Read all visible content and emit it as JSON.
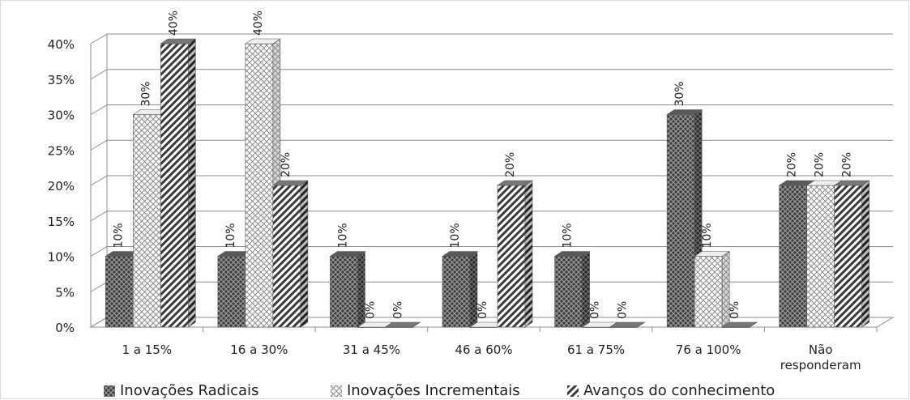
{
  "chart_data": {
    "type": "bar",
    "categories": [
      "1 a 15%",
      "16 a 30%",
      "31 a 45%",
      "46 a 60%",
      "61 a 75%",
      "76 a 100%",
      "Não respondera"
    ],
    "category_lines": [
      [
        "1 a 15%"
      ],
      [
        "16 a 30%"
      ],
      [
        "31 a 45%"
      ],
      [
        "46 a 60%"
      ],
      [
        "61 a 75%"
      ],
      [
        "76 a 100%"
      ],
      [
        "Não",
        "responderam"
      ]
    ],
    "series": [
      {
        "name": "Inovações Radicais",
        "values": [
          10,
          10,
          10,
          10,
          10,
          30,
          20
        ],
        "labels": [
          "10%",
          "10%",
          "10%",
          "10%",
          "10%",
          "30%",
          "20%"
        ],
        "pattern": "crosshatch-dark"
      },
      {
        "name": "Inovações Incrementais",
        "values": [
          30,
          40,
          0,
          0,
          0,
          10,
          20
        ],
        "labels": [
          "30%",
          "40%",
          "0%",
          "0%",
          "0%",
          "10%",
          "20%"
        ],
        "pattern": "crosshatch-light"
      },
      {
        "name": "Avanços do conhecimento",
        "values": [
          40,
          20,
          0,
          20,
          0,
          0,
          20
        ],
        "labels": [
          "40%",
          "20%",
          "0%",
          "20%",
          "0%",
          "0%",
          "20%"
        ],
        "pattern": "diagonal-stripes"
      }
    ],
    "y_ticks": [
      "0%",
      "5%",
      "10%",
      "15%",
      "20%",
      "25%",
      "30%",
      "35%",
      "40%"
    ],
    "ylim": [
      0,
      40
    ],
    "grid": true,
    "legend_position": "bottom",
    "style": "3d-clustered-column"
  },
  "legend": {
    "items": [
      {
        "label": "Inovações Radicais"
      },
      {
        "label": "Inovações Incrementais"
      },
      {
        "label": "Avanços do conhecimento"
      }
    ]
  }
}
